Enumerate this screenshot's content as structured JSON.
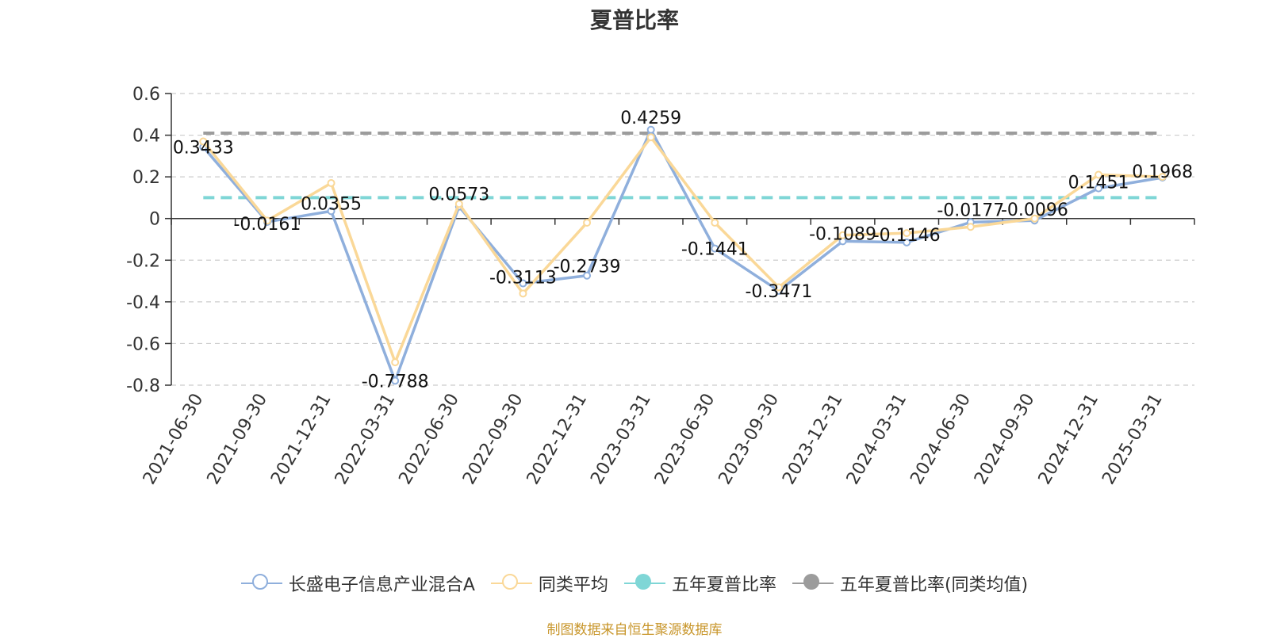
{
  "chart_data": {
    "type": "line",
    "title": "夏普比率",
    "categories": [
      "2021-06-30",
      "2021-09-30",
      "2021-12-31",
      "2022-03-31",
      "2022-06-30",
      "2022-09-30",
      "2022-12-31",
      "2023-03-31",
      "2023-06-30",
      "2023-09-30",
      "2023-12-31",
      "2024-03-31",
      "2024-06-30",
      "2024-09-30",
      "2024-12-31",
      "2025-03-31"
    ],
    "ylim": [
      -0.8,
      0.6
    ],
    "yticks": [
      0.6,
      0.4,
      0.2,
      0,
      -0.2,
      -0.4,
      -0.6,
      -0.8
    ],
    "ytick_labels": [
      "0.6",
      "0.4",
      "0.2",
      "0",
      "-0.2",
      "-0.4",
      "-0.6",
      "-0.8"
    ],
    "grid": true,
    "legend_position": "bottom",
    "series": [
      {
        "name": "长盛电子信息产业混合A",
        "color": "#8fafdc",
        "values": [
          0.3433,
          -0.0161,
          0.0355,
          -0.7788,
          0.0573,
          -0.3113,
          -0.2739,
          0.4259,
          -0.1441,
          -0.3471,
          -0.1089,
          -0.1146,
          -0.0177,
          -0.0096,
          0.1451,
          0.1968
        ],
        "labels": [
          "0.3433",
          "-0.0161",
          "0.0355",
          "-0.7788",
          "0.0573",
          "-0.3113",
          "-0.2739",
          "0.4259",
          "-0.1441",
          "-0.3471",
          "-0.1089",
          "-0.1146",
          "-0.0177",
          "-0.0096",
          "0.1451",
          "0.1968"
        ]
      },
      {
        "name": "同类平均",
        "color": "#fad898",
        "values": [
          0.37,
          -0.01,
          0.17,
          -0.69,
          0.07,
          -0.36,
          -0.02,
          0.39,
          -0.02,
          -0.33,
          -0.08,
          -0.07,
          -0.04,
          0.0,
          0.21,
          0.2
        ]
      }
    ],
    "reference_lines": [
      {
        "name": "五年夏普比率",
        "value": 0.1,
        "color": "#7fd6d6"
      },
      {
        "name": "五年夏普比率(同类均值)",
        "value": 0.41,
        "color": "#9c9c9c"
      }
    ]
  },
  "legend": [
    {
      "label": "长盛电子信息产业混合A",
      "color": "#8fafdc",
      "style": "hollow"
    },
    {
      "label": "同类平均",
      "color": "#fad898",
      "style": "hollow"
    },
    {
      "label": "五年夏普比率",
      "color": "#7fd6d6",
      "style": "filled"
    },
    {
      "label": "五年夏普比率(同类均值)",
      "color": "#9c9c9c",
      "style": "filled"
    }
  ],
  "source_note": "制图数据来自恒生聚源数据库"
}
